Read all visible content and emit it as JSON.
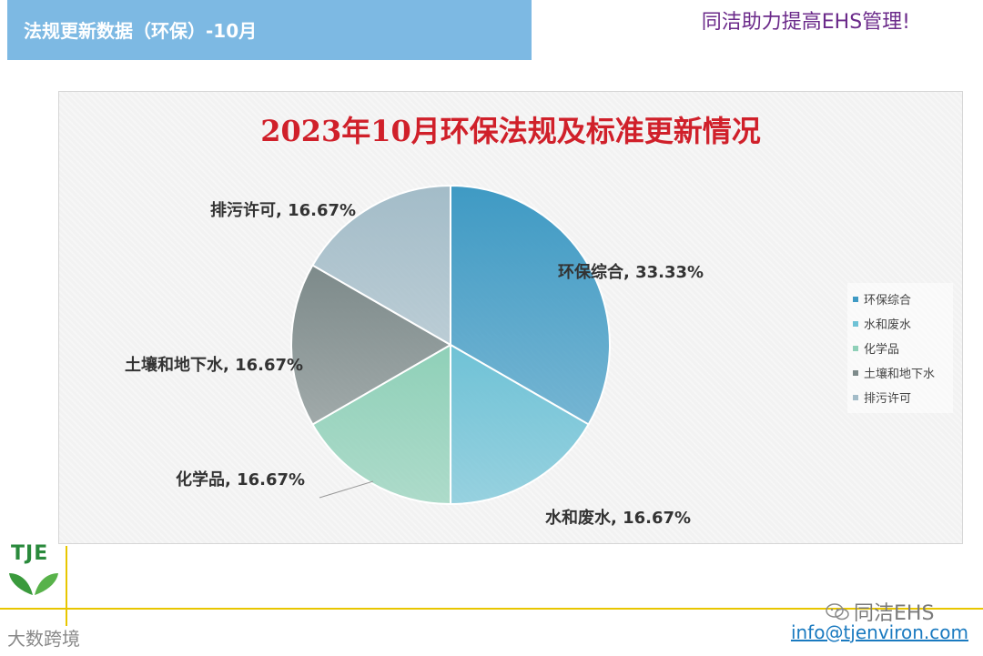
{
  "header": {
    "title": "法规更新数据（环保）-10月",
    "slogan": "同洁助力提高EHS管理!"
  },
  "chart_data": {
    "type": "pie",
    "title": "2023年10月环保法规及标准更新情况",
    "categories": [
      "环保综合",
      "水和废水",
      "化学品",
      "土壤和地下水",
      "排污许可"
    ],
    "values": [
      33.33,
      16.67,
      16.67,
      16.67,
      16.67
    ],
    "data_labels": [
      "环保综合, 33.33%",
      "水和废水, 16.67%",
      "化学品, 16.67%",
      "土壤和地下水, 16.67%",
      "排污许可, 16.67%"
    ],
    "colors": [
      "#3f9ac4",
      "#6fc2d6",
      "#8fd0b8",
      "#7d8a8a",
      "#a3bcc8"
    ],
    "legend_position": "right"
  },
  "footer": {
    "logo_text": "TJE",
    "watermark": "大数跨境",
    "wechat_name": "同洁EHS",
    "email": "info@tjenviron.com"
  }
}
